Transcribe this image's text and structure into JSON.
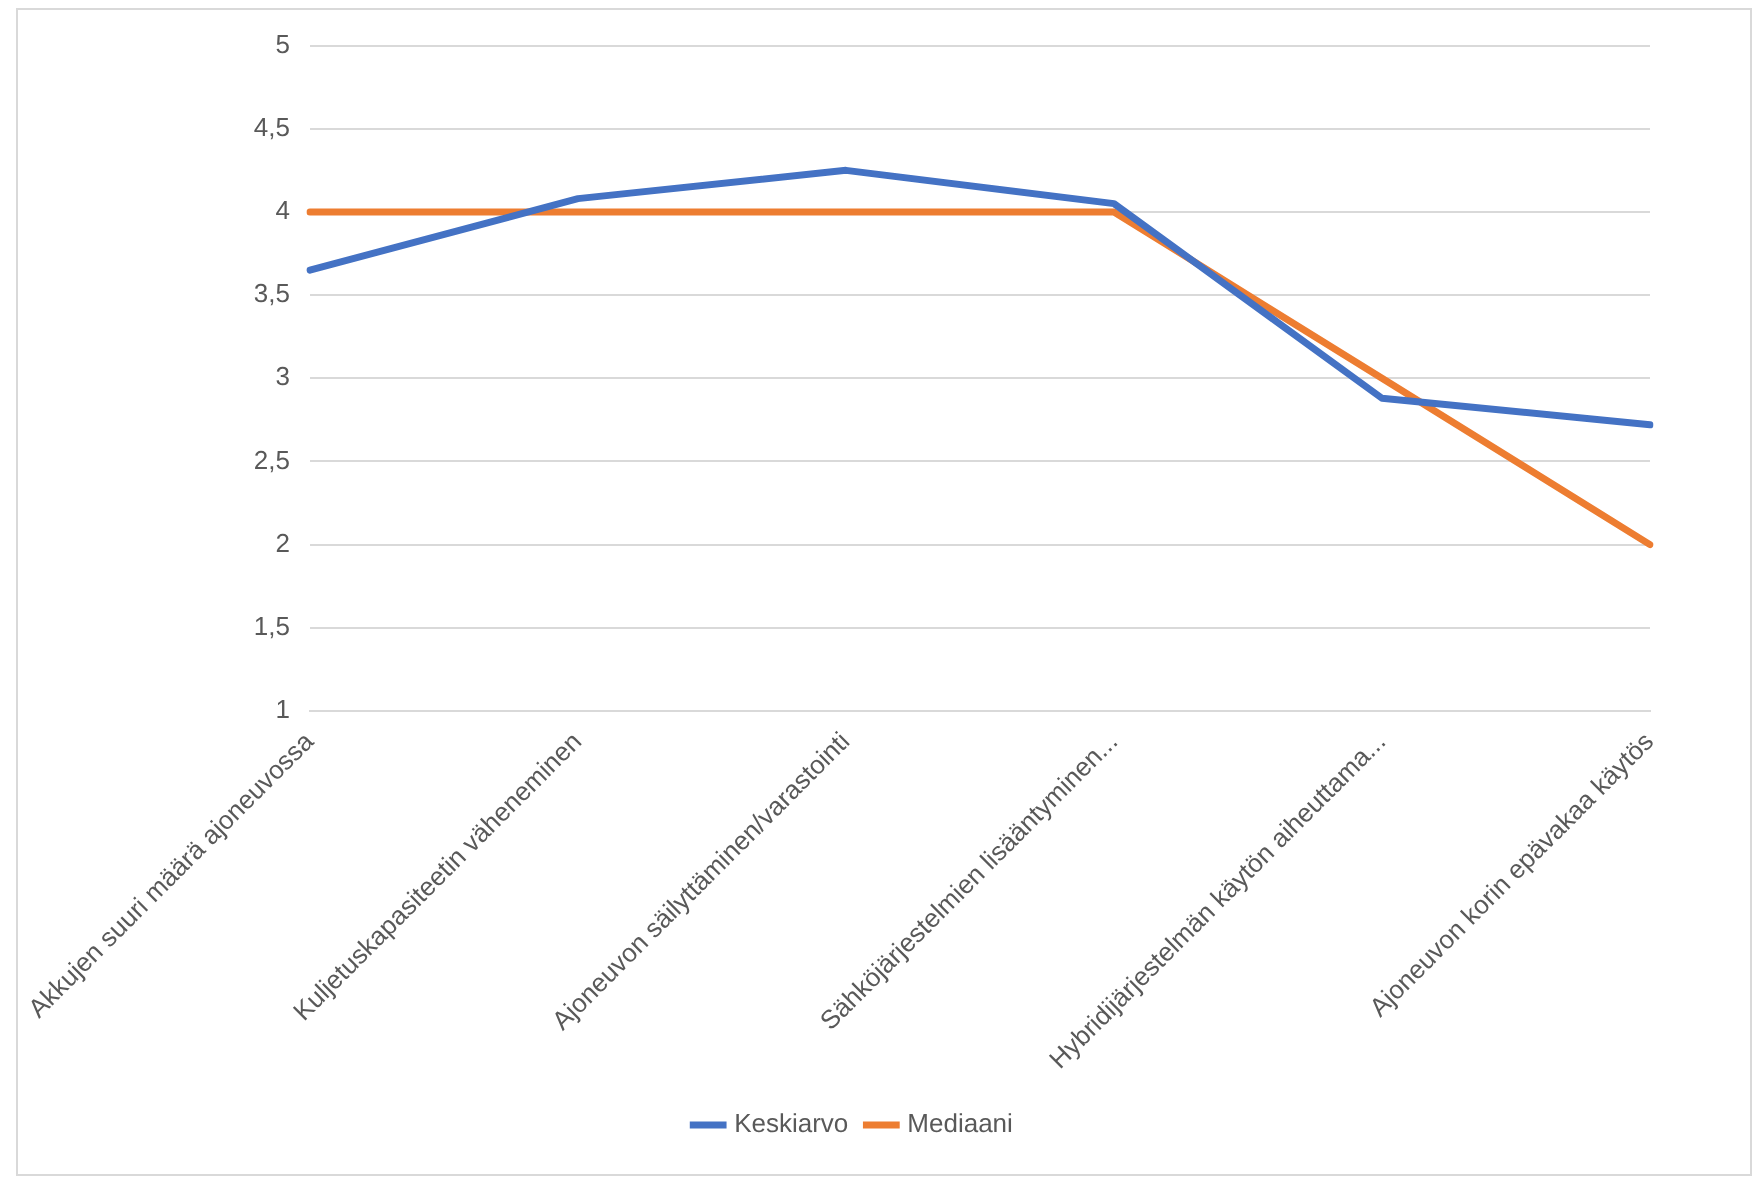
{
  "chart_data": {
    "type": "line",
    "categories": [
      "Akkujen suuri määrä ajoneuvossa",
      "Kuljetuskapasiteetin väheneminen",
      "Ajoneuvon säilyttäminen/varastointi",
      "Sähköjärjestelmien lisääntyminen...",
      "Hybridijärjestelmän käytön aiheuttama...",
      "Ajoneuvon korin epävakaa käytös"
    ],
    "series": [
      {
        "name": "Keskiarvo",
        "color": "#4472c4",
        "values": [
          3.65,
          4.08,
          4.25,
          4.05,
          2.88,
          2.72
        ]
      },
      {
        "name": "Mediaani",
        "color": "#ed7d31",
        "values": [
          4,
          4,
          4,
          4,
          3,
          2
        ]
      }
    ],
    "ylim": [
      1,
      5
    ],
    "yticks": [
      1,
      {
        "value": 1.5,
        "label": "1,5"
      },
      2,
      {
        "value": 2.5,
        "label": "2,5"
      },
      3,
      {
        "value": 3.5,
        "label": "3,5"
      },
      4,
      {
        "value": 4.5,
        "label": "4,5"
      },
      5
    ],
    "grid": "y",
    "legend": "bottom",
    "marker": "none",
    "line_style": "solid"
  }
}
